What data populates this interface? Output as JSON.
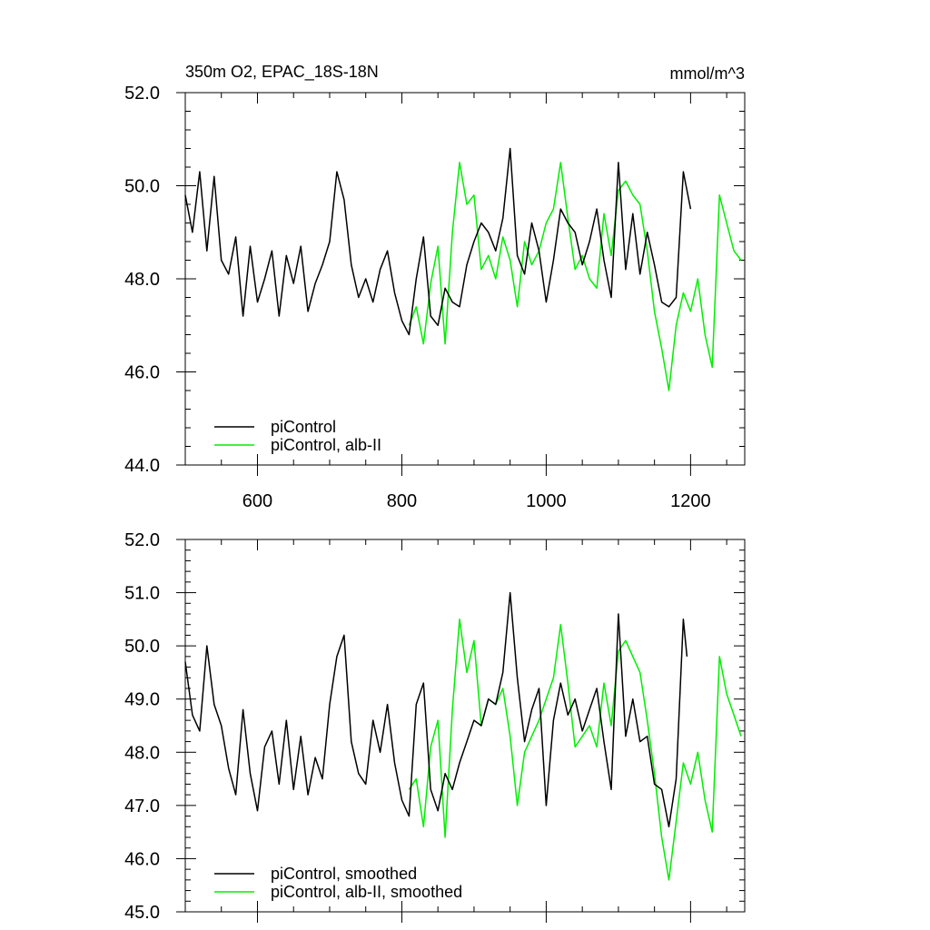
{
  "chart_data": [
    {
      "type": "line",
      "title": "350m O2, EPAC_18S-18N",
      "units": "mmol/m^3",
      "xlim": [
        500,
        1275
      ],
      "ylim": [
        44.0,
        52.0
      ],
      "x_ticks": [
        "600",
        "800",
        "1000",
        "1200"
      ],
      "y_ticks": [
        "44.0",
        "46.0",
        "48.0",
        "50.0",
        "52.0"
      ],
      "legend_position": "bottom-left",
      "series": [
        {
          "name": "piControl",
          "color": "#000000",
          "x": [
            500,
            510,
            520,
            530,
            540,
            550,
            560,
            570,
            580,
            590,
            600,
            610,
            620,
            630,
            640,
            650,
            660,
            670,
            680,
            690,
            700,
            710,
            720,
            730,
            740,
            750,
            760,
            770,
            780,
            790,
            800,
            810,
            820,
            830,
            840,
            850,
            860,
            870,
            880,
            890,
            900,
            910,
            920,
            930,
            940,
            950,
            960,
            970,
            980,
            990,
            1000,
            1010,
            1020,
            1030,
            1040,
            1050,
            1060,
            1070,
            1080,
            1090,
            1100,
            1110,
            1120,
            1130,
            1140,
            1150,
            1160,
            1170,
            1180,
            1190,
            1200
          ],
          "y": [
            49.8,
            49.0,
            50.3,
            48.6,
            50.2,
            48.4,
            48.1,
            48.9,
            47.2,
            48.7,
            47.5,
            48.0,
            48.6,
            47.2,
            48.5,
            47.9,
            48.7,
            47.3,
            47.9,
            48.3,
            48.8,
            50.3,
            49.7,
            48.3,
            47.6,
            48.0,
            47.5,
            48.2,
            48.6,
            47.7,
            47.1,
            46.8,
            48.0,
            48.9,
            47.2,
            47.0,
            47.8,
            47.5,
            47.4,
            48.3,
            48.8,
            49.2,
            49.0,
            48.6,
            49.3,
            50.8,
            48.5,
            48.1,
            49.2,
            48.6,
            47.5,
            48.4,
            49.5,
            49.2,
            49.0,
            48.3,
            48.8,
            49.5,
            48.4,
            47.6,
            50.5,
            48.2,
            49.4,
            48.1,
            49.0,
            48.3,
            47.5,
            47.4,
            47.6,
            50.3,
            49.5
          ]
        },
        {
          "name": "piControl, alb-II",
          "color": "#00ee00",
          "x": [
            810,
            820,
            830,
            840,
            850,
            860,
            870,
            880,
            890,
            900,
            910,
            920,
            930,
            940,
            950,
            960,
            970,
            980,
            990,
            1000,
            1010,
            1020,
            1030,
            1040,
            1050,
            1060,
            1070,
            1080,
            1090,
            1100,
            1110,
            1120,
            1130,
            1140,
            1150,
            1160,
            1170,
            1180,
            1190,
            1200,
            1210,
            1220,
            1230,
            1240,
            1250,
            1260,
            1270
          ],
          "y": [
            47.0,
            47.4,
            46.6,
            47.9,
            48.7,
            46.6,
            49.0,
            50.5,
            49.6,
            49.8,
            48.2,
            48.5,
            48.0,
            48.9,
            48.4,
            47.4,
            48.8,
            48.3,
            48.6,
            49.2,
            49.5,
            50.5,
            49.3,
            48.2,
            48.5,
            48.0,
            47.8,
            49.4,
            48.5,
            49.9,
            50.1,
            49.8,
            49.6,
            48.6,
            47.3,
            46.5,
            45.6,
            47.0,
            47.7,
            47.3,
            48.0,
            46.8,
            46.1,
            49.8,
            49.2,
            48.6,
            48.4
          ]
        }
      ]
    },
    {
      "type": "line",
      "xlim": [
        500,
        1275
      ],
      "ylim": [
        45.0,
        52.0
      ],
      "y_ticks": [
        "45.0",
        "46.0",
        "47.0",
        "48.0",
        "49.0",
        "50.0",
        "51.0",
        "52.0"
      ],
      "legend_position": "bottom-left",
      "series": [
        {
          "name": "piControl, smoothed",
          "color": "#000000",
          "x": [
            500,
            510,
            520,
            530,
            540,
            550,
            560,
            570,
            580,
            590,
            600,
            610,
            620,
            630,
            640,
            650,
            660,
            670,
            680,
            690,
            700,
            710,
            720,
            730,
            740,
            750,
            760,
            770,
            780,
            790,
            800,
            810,
            820,
            830,
            840,
            850,
            860,
            870,
            880,
            890,
            900,
            910,
            920,
            930,
            940,
            950,
            960,
            970,
            980,
            990,
            1000,
            1010,
            1020,
            1030,
            1040,
            1050,
            1060,
            1070,
            1080,
            1090,
            1100,
            1110,
            1120,
            1130,
            1140,
            1150,
            1160,
            1170,
            1180,
            1190,
            1195
          ],
          "y": [
            49.7,
            48.7,
            48.4,
            50.0,
            48.9,
            48.5,
            47.7,
            47.2,
            48.8,
            47.6,
            46.9,
            48.1,
            48.4,
            47.4,
            48.6,
            47.3,
            48.3,
            47.2,
            47.9,
            47.5,
            48.9,
            49.8,
            50.2,
            48.2,
            47.6,
            47.4,
            48.6,
            48.0,
            48.9,
            47.8,
            47.1,
            46.8,
            48.9,
            49.3,
            47.3,
            46.9,
            47.6,
            47.3,
            47.8,
            48.2,
            48.6,
            48.5,
            49.0,
            48.9,
            49.5,
            51.0,
            49.4,
            48.2,
            48.8,
            49.2,
            47.0,
            48.6,
            49.3,
            48.7,
            49.0,
            48.4,
            48.8,
            49.2,
            48.2,
            47.3,
            50.6,
            48.3,
            49.0,
            48.2,
            48.3,
            47.4,
            47.3,
            46.6,
            47.5,
            50.5,
            49.8
          ]
        },
        {
          "name": "piControl, alb-II, smoothed",
          "color": "#00ee00",
          "x": [
            810,
            820,
            830,
            840,
            850,
            860,
            870,
            880,
            890,
            900,
            910,
            920,
            930,
            940,
            950,
            960,
            970,
            980,
            990,
            1000,
            1010,
            1020,
            1030,
            1040,
            1050,
            1060,
            1070,
            1080,
            1090,
            1100,
            1110,
            1120,
            1130,
            1140,
            1150,
            1160,
            1170,
            1180,
            1190,
            1200,
            1210,
            1220,
            1230,
            1240,
            1250,
            1260,
            1270
          ],
          "y": [
            47.3,
            47.5,
            46.6,
            48.1,
            48.6,
            46.4,
            48.8,
            50.5,
            49.5,
            50.1,
            48.5,
            49.0,
            48.9,
            49.2,
            48.3,
            47.0,
            48.0,
            48.3,
            48.6,
            49.0,
            49.4,
            50.4,
            49.3,
            48.1,
            48.3,
            48.5,
            48.1,
            49.3,
            48.5,
            49.9,
            50.1,
            49.8,
            49.5,
            48.6,
            47.6,
            46.4,
            45.6,
            46.7,
            47.8,
            47.4,
            48.0,
            47.1,
            46.5,
            49.8,
            49.1,
            48.7,
            48.3
          ]
        }
      ]
    }
  ]
}
